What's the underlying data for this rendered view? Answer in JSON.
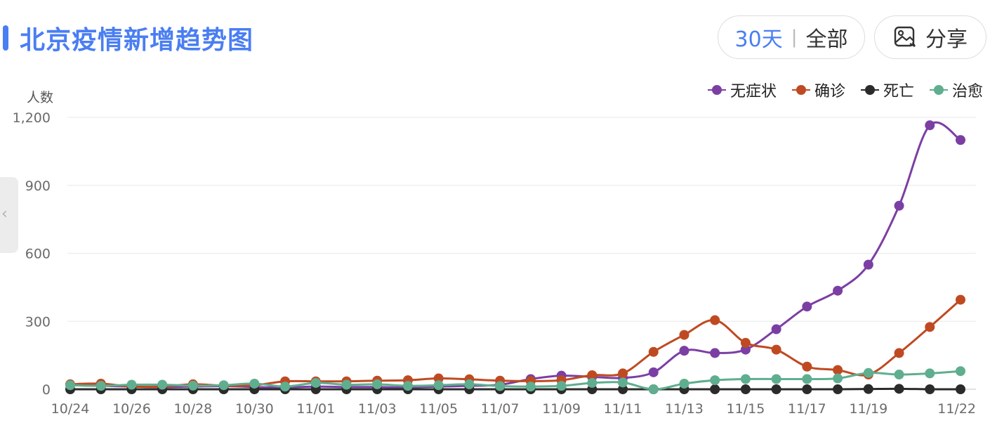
{
  "header": {
    "title": "北京疫情新增趋势图",
    "range_30": "30天",
    "range_sep": "|",
    "range_all": "全部",
    "share_label": "分享"
  },
  "side_handle_glyph": "‹",
  "chart_data": {
    "type": "line",
    "ylabel": "人数",
    "ylim": [
      0,
      1200
    ],
    "yticks": [
      0,
      300,
      600,
      900,
      1200
    ],
    "ytick_labels": [
      "0",
      "300",
      "600",
      "900",
      "1,200"
    ],
    "grid": true,
    "legend_position": "top-right",
    "x": [
      "10/24",
      "10/25",
      "10/26",
      "10/27",
      "10/28",
      "10/29",
      "10/30",
      "10/31",
      "11/01",
      "11/02",
      "11/03",
      "11/04",
      "11/05",
      "11/06",
      "11/07",
      "11/08",
      "11/09",
      "11/10",
      "11/11",
      "11/12",
      "11/13",
      "11/14",
      "11/15",
      "11/16",
      "11/17",
      "11/18",
      "11/19",
      "11/20",
      "11/21",
      "11/22"
    ],
    "xtick_labels": [
      "10/24",
      "10/26",
      "10/28",
      "10/30",
      "11/01",
      "11/03",
      "11/05",
      "11/07",
      "11/09",
      "11/11",
      "11/13",
      "11/15",
      "11/17",
      "11/19",
      "11/22"
    ],
    "series": [
      {
        "name": "无症状",
        "color": "#7b3fa4",
        "values": [
          20,
          15,
          12,
          10,
          12,
          14,
          10,
          8,
          12,
          10,
          10,
          8,
          12,
          15,
          20,
          45,
          60,
          55,
          50,
          75,
          170,
          160,
          175,
          265,
          365,
          435,
          550,
          810,
          1165,
          1100
        ]
      },
      {
        "name": "确诊",
        "color": "#bf4a22",
        "values": [
          22,
          25,
          12,
          12,
          22,
          16,
          18,
          35,
          35,
          35,
          38,
          40,
          48,
          44,
          38,
          36,
          40,
          62,
          70,
          165,
          240,
          305,
          205,
          175,
          100,
          85,
          65,
          160,
          275,
          395
        ]
      },
      {
        "name": "死亡",
        "color": "#2b2b2b",
        "values": [
          0,
          0,
          0,
          0,
          0,
          0,
          0,
          0,
          0,
          0,
          0,
          0,
          0,
          0,
          0,
          0,
          0,
          0,
          0,
          0,
          0,
          0,
          0,
          0,
          0,
          0,
          1,
          2,
          0,
          0
        ]
      },
      {
        "name": "治愈",
        "color": "#5fae8f",
        "values": [
          18,
          15,
          20,
          20,
          16,
          18,
          25,
          12,
          28,
          20,
          22,
          15,
          18,
          22,
          14,
          12,
          15,
          28,
          30,
          0,
          25,
          40,
          45,
          45,
          45,
          48,
          72,
          65,
          70,
          80
        ]
      }
    ]
  }
}
